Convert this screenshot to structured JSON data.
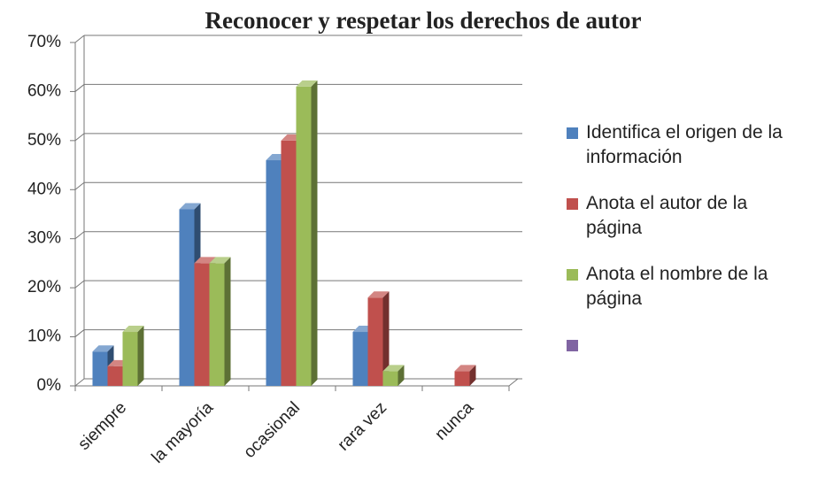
{
  "chart_data": {
    "type": "bar3d",
    "title": "Reconocer y respetar los derechos de autor",
    "categories": [
      "siempre",
      "la mayoría",
      "ocasional",
      "rara vez",
      "nunca"
    ],
    "series": [
      {
        "name": "Identifica el origen de la información",
        "color": "#4f81bd",
        "values": [
          7,
          36,
          46,
          11,
          null
        ]
      },
      {
        "name": "Anota el autor de la página",
        "color": "#c0504d",
        "values": [
          4,
          25,
          50,
          18,
          3
        ]
      },
      {
        "name": "Anota el nombre de la página",
        "color": "#9bbb59",
        "values": [
          11,
          25,
          61,
          3,
          null
        ]
      },
      {
        "color": "#8064a2",
        "values": [
          null,
          null,
          null,
          null,
          null
        ]
      }
    ],
    "ylim": [
      0,
      70
    ],
    "yticks": [
      {
        "value": 0,
        "label": "0%"
      },
      {
        "value": 10,
        "label": "10%"
      },
      {
        "value": 20,
        "label": "20%"
      },
      {
        "value": 30,
        "label": "30%"
      },
      {
        "value": 40,
        "label": "40%"
      },
      {
        "value": 50,
        "label": "50%"
      },
      {
        "value": 60,
        "label": "60%"
      },
      {
        "value": 70,
        "label": "70%"
      }
    ],
    "grid": true,
    "legend": "right"
  }
}
